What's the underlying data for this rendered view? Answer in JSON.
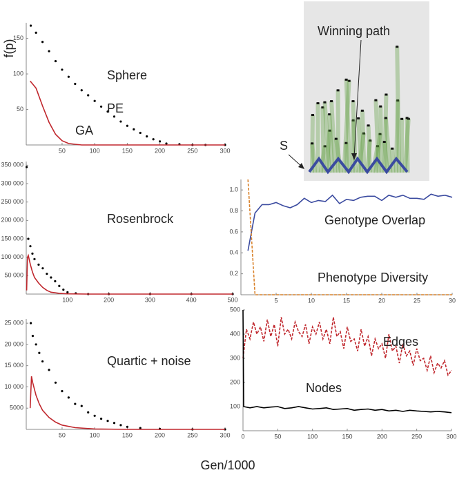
{
  "chart_data": [
    {
      "type": "line",
      "title": "Sphere",
      "ylabel": "f(p)",
      "xlim": [
        -5,
        300
      ],
      "ylim": [
        0,
        172
      ],
      "xticks": [
        50,
        100,
        150,
        200,
        250,
        300
      ],
      "yticks": [
        50,
        100,
        150
      ],
      "series": [
        {
          "name": "PE",
          "type": "scatter",
          "color": "#000000",
          "x": [
            2,
            10,
            20,
            30,
            40,
            50,
            60,
            70,
            80,
            90,
            100,
            110,
            120,
            130,
            140,
            150,
            160,
            170,
            180,
            190,
            200,
            210,
            230,
            250,
            270,
            300
          ],
          "values": [
            168,
            158,
            145,
            132,
            118,
            106,
            96,
            86,
            77,
            70,
            62,
            54,
            47,
            40,
            33,
            27,
            22,
            17,
            12,
            8,
            5,
            2,
            1,
            0,
            0,
            0
          ]
        },
        {
          "name": "GA",
          "type": "line",
          "color": "#c0272d",
          "x": [
            1,
            10,
            20,
            30,
            40,
            50,
            60,
            70,
            80,
            300
          ],
          "values": [
            90,
            80,
            55,
            32,
            15,
            6,
            2,
            1,
            0,
            0
          ]
        }
      ]
    },
    {
      "type": "line",
      "title": "Rosenbrock",
      "xlim": [
        0,
        500
      ],
      "ylim": [
        0,
        360000
      ],
      "xticks": [
        100,
        200,
        300,
        400,
        500
      ],
      "yticks": [
        {
          "value": 50000,
          "label": "50 000"
        },
        {
          "value": 100000,
          "label": "100 000"
        },
        {
          "value": 150000,
          "label": "150 000"
        },
        {
          "value": 200000,
          "label": "200 000"
        },
        {
          "value": 250000,
          "label": "250 000"
        },
        {
          "value": 300000,
          "label": "300 000"
        },
        {
          "value": 350000,
          "label": "350 000"
        }
      ],
      "series": [
        {
          "type": "scatter",
          "color": "#000000",
          "x": [
            1,
            5,
            10,
            15,
            20,
            30,
            40,
            50,
            60,
            70,
            80,
            90,
            100,
            120,
            150,
            200,
            300,
            400,
            500
          ],
          "values": [
            345000,
            150000,
            130000,
            110000,
            95000,
            80000,
            70000,
            55000,
            45000,
            35000,
            22000,
            12000,
            5000,
            2000,
            0,
            0,
            0,
            0,
            0
          ]
        },
        {
          "type": "line",
          "color": "#c0272d",
          "x": [
            1,
            3,
            5,
            10,
            15,
            20,
            30,
            40,
            50,
            60,
            80,
            100,
            150,
            500
          ],
          "values": [
            10000,
            100000,
            105000,
            80000,
            60000,
            45000,
            30000,
            18000,
            10000,
            5000,
            2000,
            500,
            0,
            0
          ]
        }
      ]
    },
    {
      "type": "line",
      "title": "Quartic + noise",
      "xlabel": "Gen/1000",
      "xlim": [
        -5,
        300
      ],
      "ylim": [
        0,
        26000
      ],
      "xticks": [
        50,
        100,
        150,
        200,
        250,
        300
      ],
      "yticks": [
        5000,
        {
          "value": 10000,
          "label": "10 000"
        },
        {
          "value": 15000,
          "label": "15 000"
        },
        {
          "value": 20000,
          "label": "20 000"
        },
        {
          "value": 25000,
          "label": "25 000"
        }
      ],
      "series": [
        {
          "type": "scatter",
          "color": "#000000",
          "x": [
            2,
            5,
            10,
            15,
            20,
            30,
            40,
            50,
            60,
            70,
            80,
            90,
            100,
            110,
            120,
            130,
            140,
            150,
            170,
            200,
            250,
            300
          ],
          "values": [
            25000,
            22000,
            20000,
            18000,
            16000,
            14000,
            11000,
            9000,
            7500,
            6000,
            5500,
            4000,
            3200,
            2500,
            2000,
            1500,
            1000,
            600,
            300,
            100,
            0,
            0
          ]
        },
        {
          "type": "line",
          "color": "#c0272d",
          "x": [
            1,
            3,
            5,
            10,
            15,
            20,
            30,
            40,
            50,
            70,
            100,
            150,
            300
          ],
          "values": [
            5000,
            12500,
            11000,
            8000,
            6000,
            4500,
            2800,
            1700,
            1000,
            400,
            100,
            0,
            0
          ]
        }
      ]
    },
    {
      "type": "line",
      "xlim": [
        0,
        30
      ],
      "ylim": [
        0,
        1.1
      ],
      "xticks": [
        5,
        10,
        15,
        20,
        25,
        30
      ],
      "yticks": [
        0.2,
        0.4,
        0.6,
        0.8,
        {
          "value": 1,
          "label": "1.0"
        }
      ],
      "series": [
        {
          "name": "Genotype Overlap",
          "type": "line",
          "color": "#3b4ba0",
          "x": [
            1,
            2,
            3,
            4,
            5,
            6,
            7,
            8,
            9,
            10,
            11,
            12,
            13,
            14,
            15,
            16,
            17,
            18,
            19,
            20,
            21,
            22,
            23,
            24,
            25,
            26,
            27,
            28,
            29,
            30
          ],
          "values": [
            0.42,
            0.78,
            0.86,
            0.86,
            0.88,
            0.85,
            0.83,
            0.86,
            0.92,
            0.88,
            0.9,
            0.89,
            0.95,
            0.87,
            0.91,
            0.9,
            0.93,
            0.94,
            0.94,
            0.9,
            0.95,
            0.93,
            0.95,
            0.92,
            0.92,
            0.91,
            0.96,
            0.94,
            0.95,
            0.93
          ]
        },
        {
          "name": "Phenotype Diversity",
          "type": "line",
          "dash": true,
          "color": "#d9822b",
          "x": [
            1,
            2,
            30
          ],
          "values": [
            1.1,
            0,
            0
          ]
        }
      ]
    },
    {
      "type": "line",
      "xlim": [
        0,
        300
      ],
      "ylim": [
        0,
        500
      ],
      "xticks": [
        0,
        50,
        100,
        150,
        200,
        250,
        300
      ],
      "yticks": [
        100,
        200,
        300,
        400,
        500
      ],
      "series": [
        {
          "name": "Edges",
          "type": "line",
          "dash": true,
          "color": "#c0272d",
          "x": [
            0,
            5,
            10,
            15,
            20,
            25,
            30,
            35,
            40,
            45,
            50,
            55,
            60,
            65,
            70,
            75,
            80,
            85,
            90,
            95,
            100,
            105,
            110,
            115,
            120,
            125,
            130,
            135,
            140,
            145,
            150,
            155,
            160,
            165,
            170,
            175,
            180,
            185,
            190,
            195,
            200,
            205,
            210,
            215,
            220,
            225,
            230,
            235,
            240,
            245,
            250,
            255,
            260,
            265,
            270,
            275,
            280,
            285,
            290,
            295,
            300
          ],
          "values": [
            300,
            420,
            380,
            450,
            400,
            430,
            370,
            460,
            390,
            440,
            350,
            470,
            400,
            420,
            380,
            450,
            410,
            390,
            440,
            360,
            430,
            400,
            450,
            380,
            420,
            360,
            470,
            390,
            410,
            340,
            430,
            370,
            380,
            330,
            420,
            350,
            390,
            310,
            380,
            340,
            360,
            300,
            400,
            330,
            350,
            280,
            360,
            310,
            330,
            270,
            340,
            290,
            300,
            250,
            310,
            240,
            280,
            260,
            290,
            230,
            250
          ]
        },
        {
          "name": "Nodes",
          "type": "line",
          "color": "#000000",
          "x": [
            0,
            1,
            10,
            20,
            30,
            40,
            50,
            60,
            70,
            80,
            90,
            100,
            110,
            120,
            130,
            140,
            150,
            160,
            170,
            180,
            190,
            200,
            210,
            220,
            230,
            240,
            250,
            260,
            270,
            280,
            290,
            300
          ],
          "values": [
            500,
            100,
            95,
            100,
            95,
            98,
            100,
            92,
            95,
            100,
            95,
            90,
            92,
            95,
            88,
            90,
            92,
            85,
            88,
            90,
            85,
            88,
            82,
            85,
            80,
            85,
            82,
            80,
            78,
            80,
            78,
            75
          ]
        }
      ]
    }
  ],
  "diagram": {
    "path_label": "Winning path",
    "start_label": "S"
  }
}
